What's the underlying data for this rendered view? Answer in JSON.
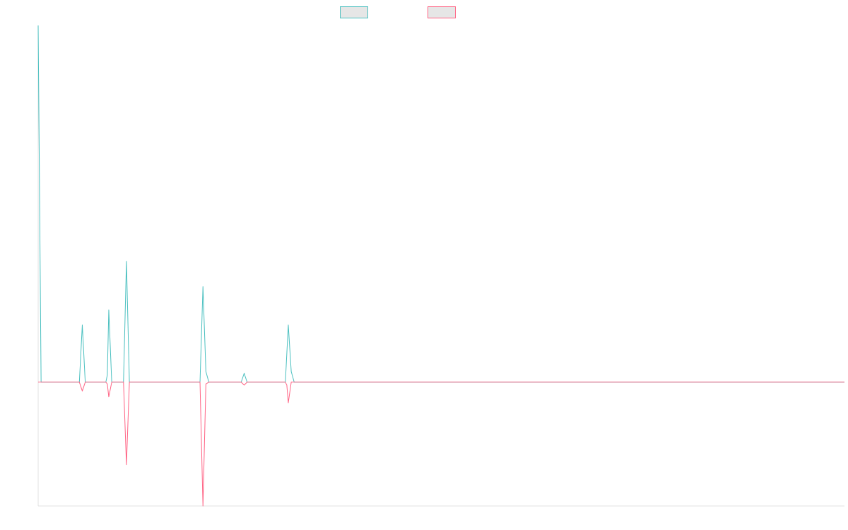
{
  "chart_data": {
    "type": "line",
    "title": "",
    "xlabel": "",
    "ylabel": "",
    "grid": false,
    "legend_position": "top-center",
    "x_range": [
      0,
      274
    ],
    "ylim": [
      -42,
      121
    ],
    "series": [
      {
        "name": "",
        "color": "#4bc0c0",
        "fill": "#e6e6e6",
        "points": [
          [
            0,
            121
          ],
          [
            1,
            0
          ],
          [
            14,
            0
          ],
          [
            15,
            19.4
          ],
          [
            16,
            0
          ],
          [
            23,
            0
          ],
          [
            23.5,
            2.4
          ],
          [
            24,
            24.5
          ],
          [
            25,
            0
          ],
          [
            29,
            0
          ],
          [
            30,
            41
          ],
          [
            31,
            0
          ],
          [
            55,
            0
          ],
          [
            56,
            32.4
          ],
          [
            57,
            3.6
          ],
          [
            58,
            0
          ],
          [
            69,
            0
          ],
          [
            70,
            3
          ],
          [
            71,
            0
          ],
          [
            84,
            0
          ],
          [
            85,
            19.4
          ],
          [
            86,
            3.6
          ],
          [
            87,
            0
          ],
          [
            274,
            0
          ]
        ]
      },
      {
        "name": "",
        "color": "#ff6384",
        "fill": "#e6e6e6",
        "points": [
          [
            0,
            0
          ],
          [
            14,
            0
          ],
          [
            15,
            -3
          ],
          [
            16,
            0
          ],
          [
            23,
            0
          ],
          [
            23.5,
            -0.6
          ],
          [
            24,
            -5
          ],
          [
            25,
            0
          ],
          [
            29,
            0
          ],
          [
            30,
            -28
          ],
          [
            31,
            0
          ],
          [
            55,
            0
          ],
          [
            56,
            -42
          ],
          [
            57,
            -0.6
          ],
          [
            58,
            0
          ],
          [
            69,
            0
          ],
          [
            70,
            -1
          ],
          [
            71,
            0
          ],
          [
            84,
            0
          ],
          [
            84.5,
            -1
          ],
          [
            85,
            -7
          ],
          [
            86,
            0
          ],
          [
            274,
            0
          ]
        ]
      }
    ]
  }
}
